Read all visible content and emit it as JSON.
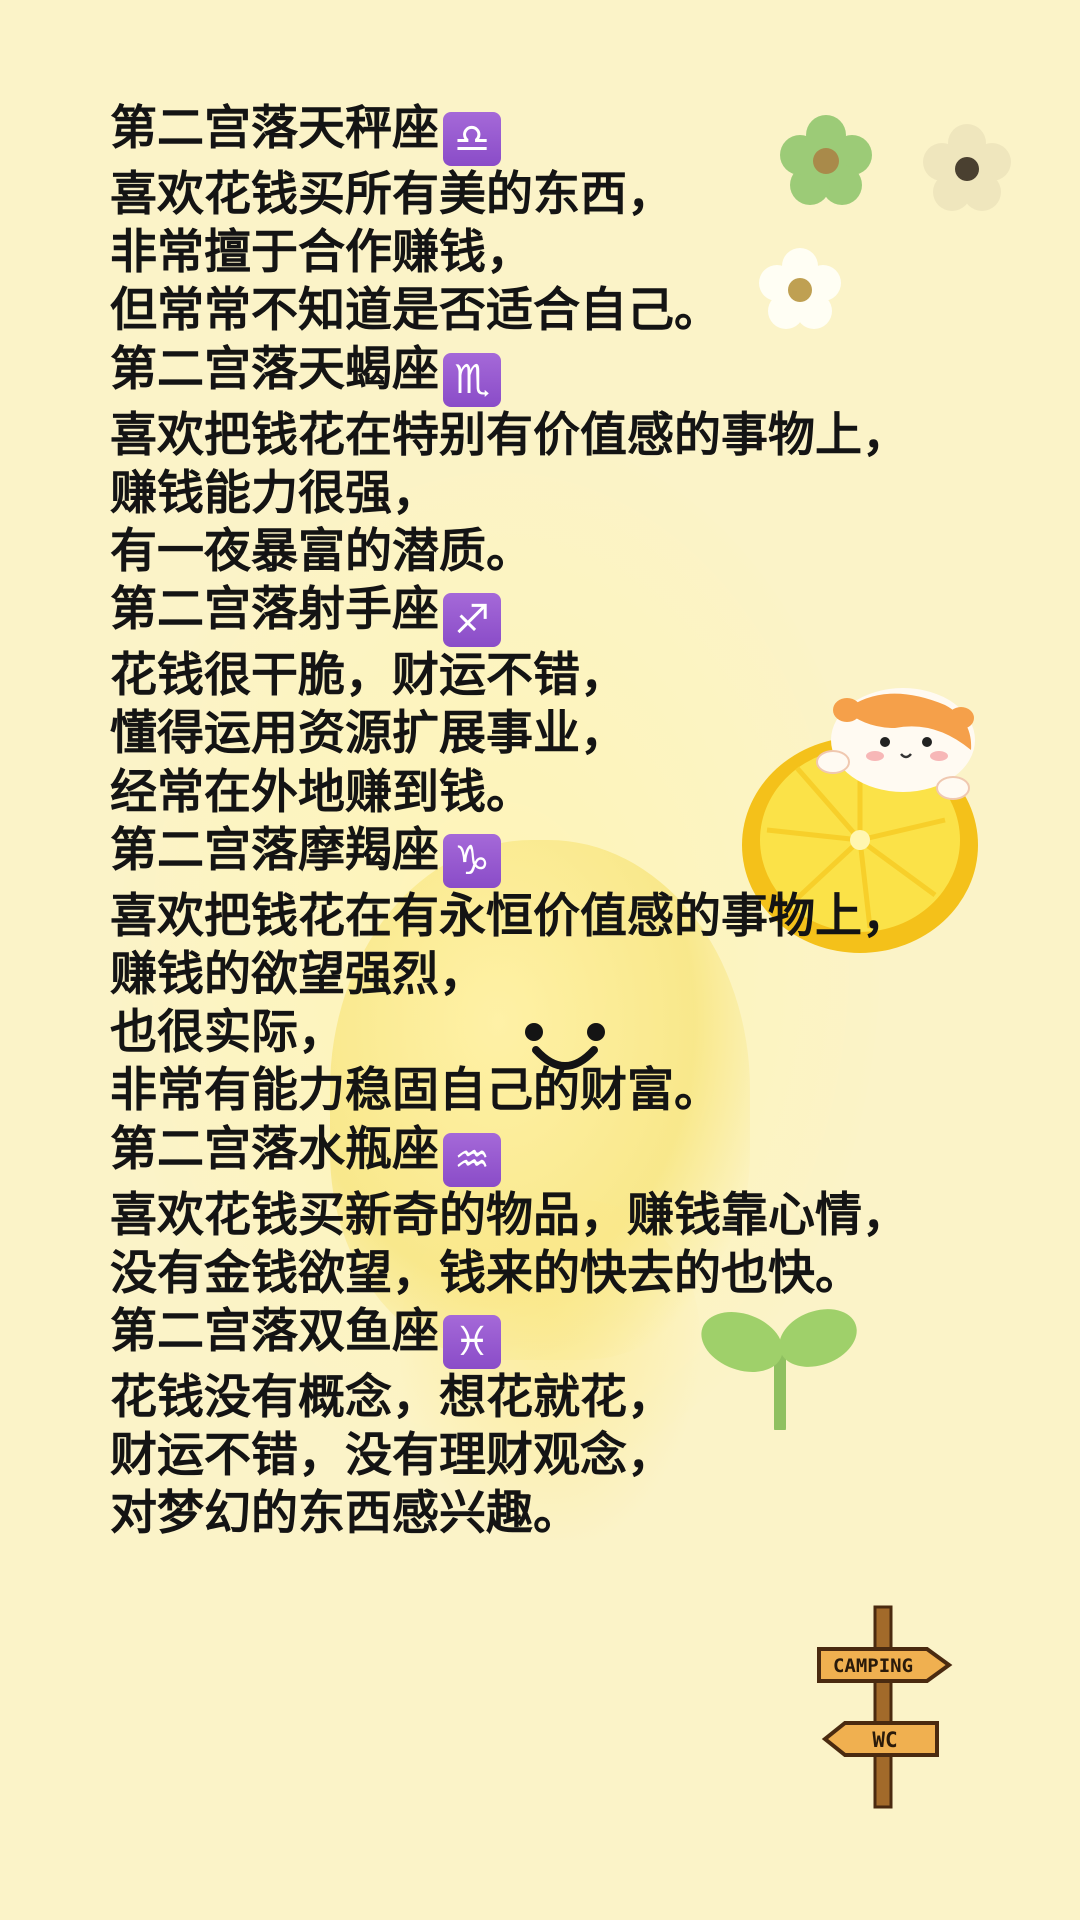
{
  "sections": [
    {
      "title": "第二宫落天秤座",
      "symbol": "♎",
      "lines": [
        "喜欢花钱买所有美的东西，",
        "非常擅于合作赚钱，",
        "但常常不知道是否适合自己。"
      ]
    },
    {
      "title": "第二宫落天蝎座",
      "symbol": "♏",
      "lines": [
        "喜欢把钱花在特别有价值感的事物上，",
        "赚钱能力很强，",
        "有一夜暴富的潜质。"
      ]
    },
    {
      "title": "第二宫落射手座",
      "symbol": "♐",
      "lines": [
        "花钱很干脆，财运不错，",
        "懂得运用资源扩展事业，",
        "经常在外地赚到钱。"
      ]
    },
    {
      "title": "第二宫落摩羯座",
      "symbol": "♑",
      "lines": [
        "喜欢把钱花在有永恒价值感的事物上，",
        "赚钱的欲望强烈，",
        "也很实际，",
        "非常有能力稳固自己的财富。"
      ]
    },
    {
      "title": "第二宫落水瓶座",
      "symbol": "♒",
      "lines": [
        "喜欢花钱买新奇的物品，赚钱靠心情，",
        "没有金钱欲望，钱来的快去的也快。"
      ]
    },
    {
      "title": "第二宫落双鱼座",
      "symbol": "♓",
      "lines": [
        "花钱没有概念，想花就花，",
        "财运不错，没有理财观念，",
        "对梦幻的东西感兴趣。"
      ]
    }
  ],
  "signpost": {
    "top_label": "CAMPING",
    "bottom_label": "WC"
  },
  "colors": {
    "background": "#fbf3c8",
    "text": "#141414",
    "badge": "#9a58d2"
  },
  "icons": [
    "flower-green-icon",
    "flower-beige-icon",
    "flower-white-icon",
    "lemon-hamster-icon",
    "sprout-icon",
    "signpost-icon"
  ]
}
